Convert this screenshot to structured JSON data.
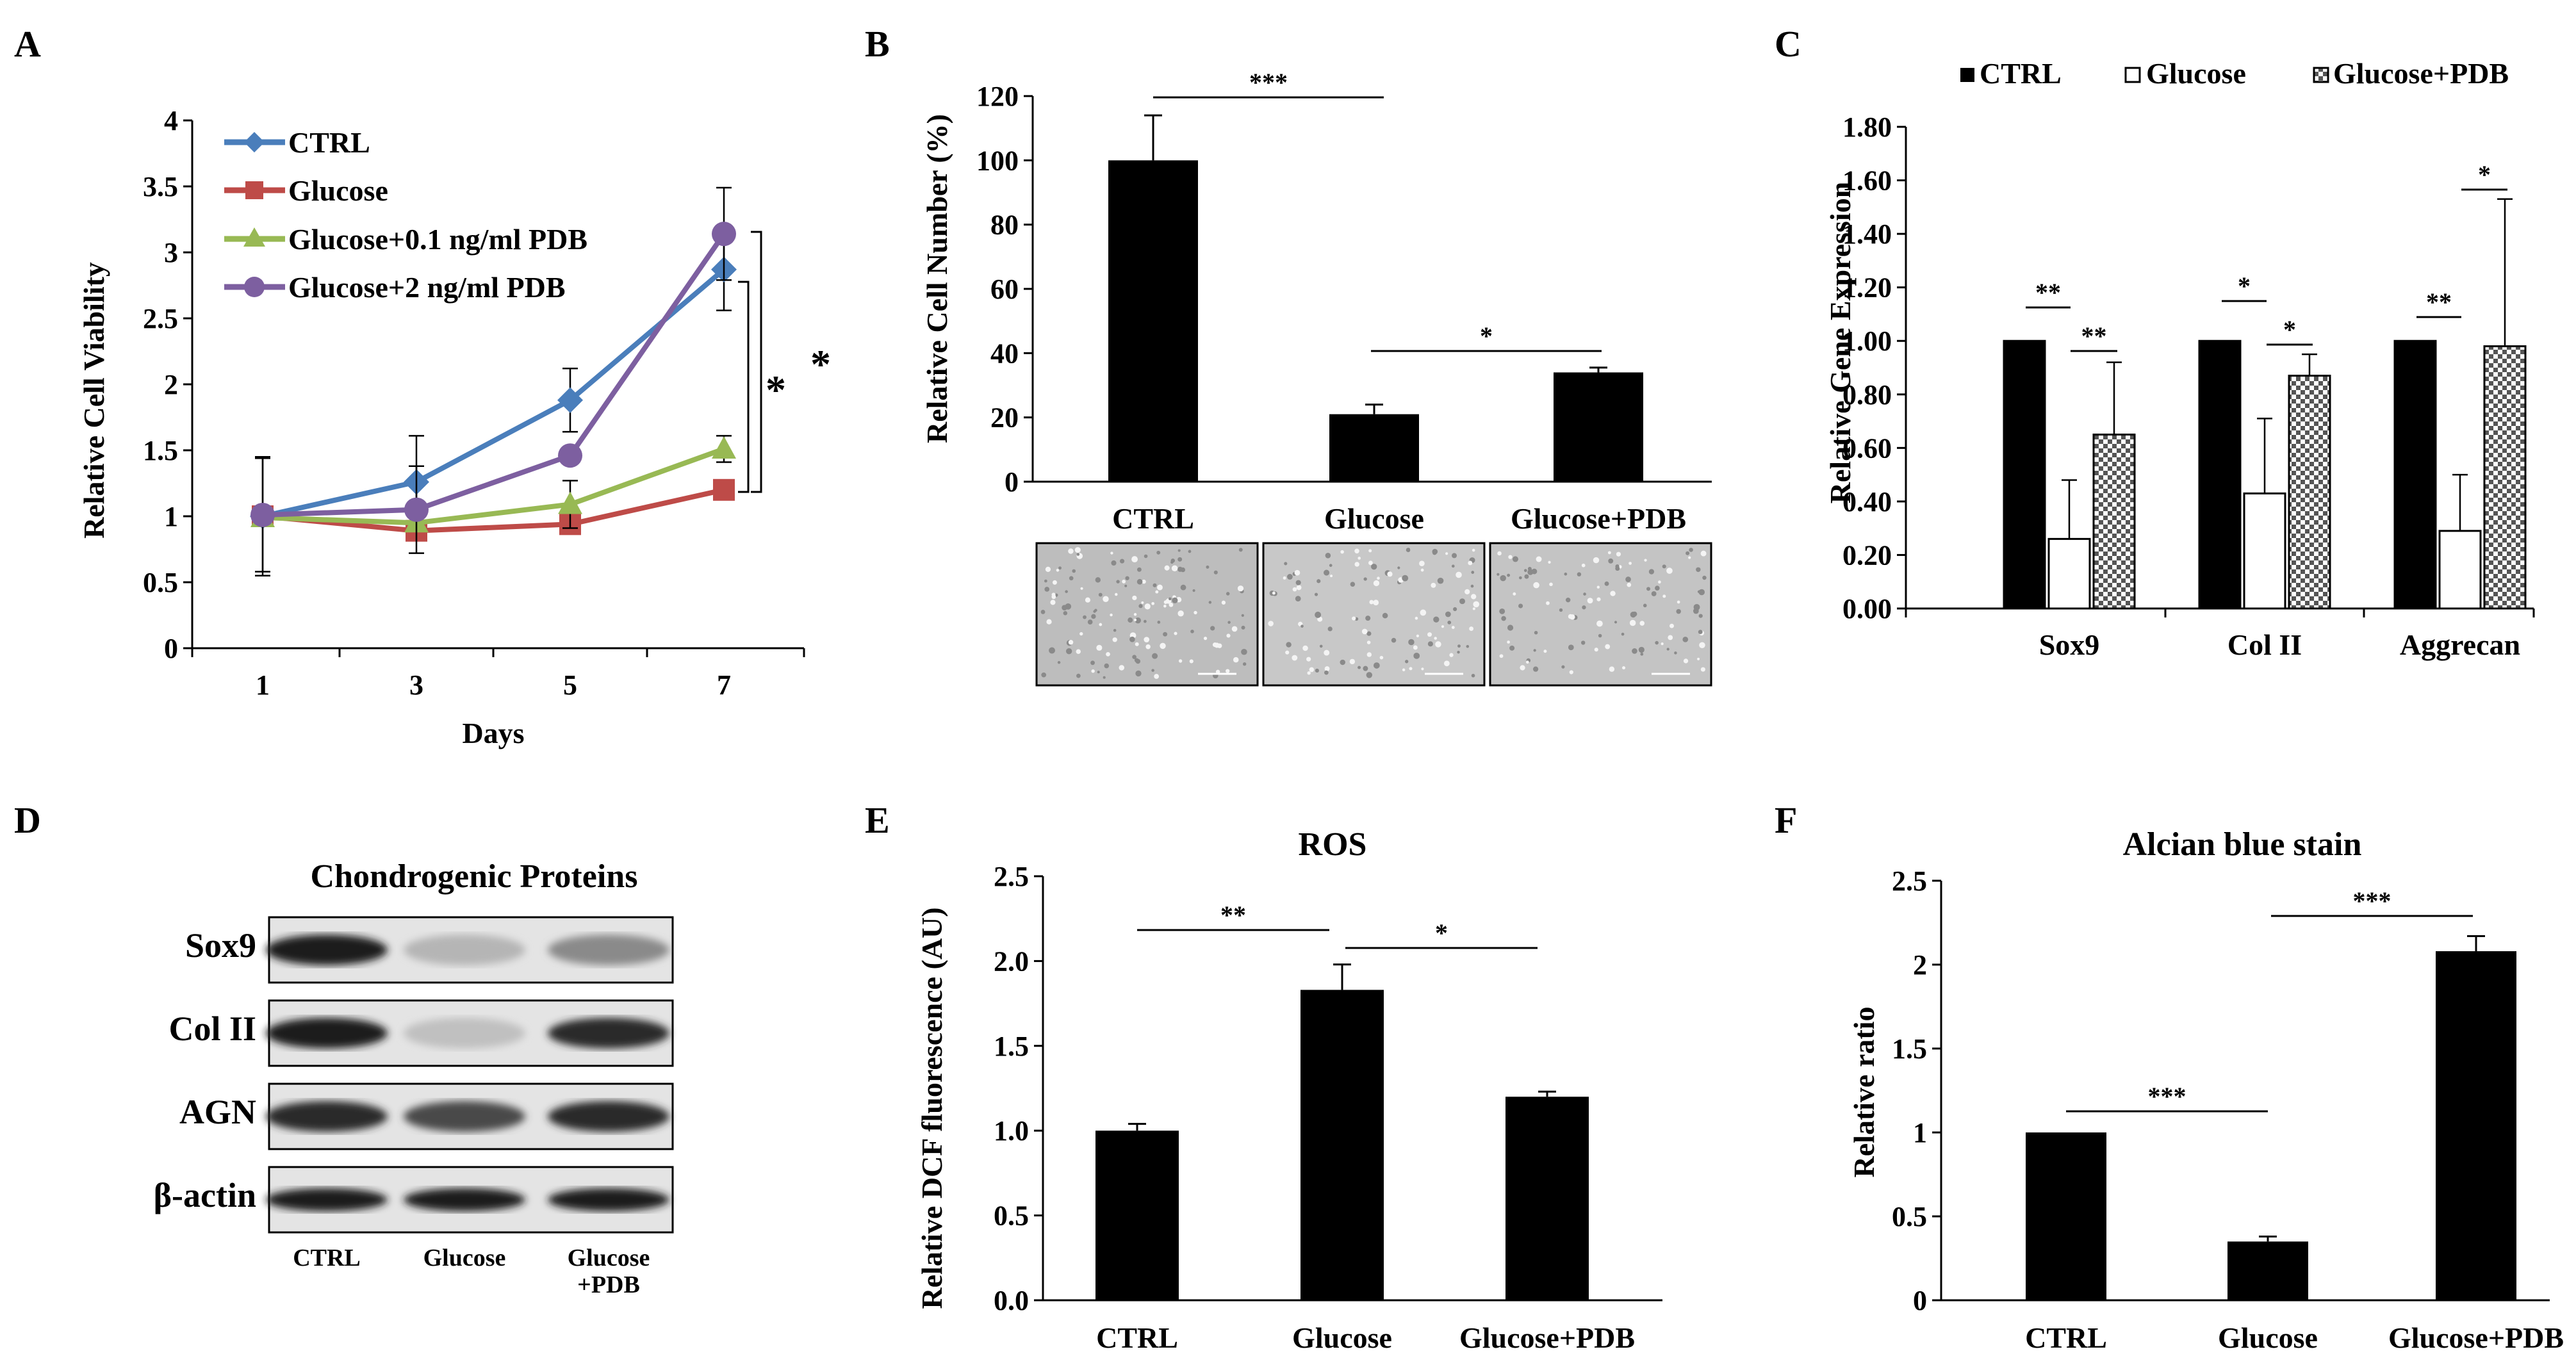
{
  "panel_letters": [
    "A",
    "B",
    "C",
    "D",
    "E",
    "F"
  ],
  "colors": {
    "ctrl": "#4a7ebb",
    "glucose": "#be4b48",
    "pdb01": "#98b954",
    "pdb2": "#7d5fa0",
    "bar": "#000000"
  },
  "chart_data": [
    {
      "panel": "A",
      "type": "line",
      "x": [
        1,
        3,
        5,
        7
      ],
      "xticks": [
        "1",
        "3",
        "5",
        "7"
      ],
      "xlabel": "Days",
      "ylabel": "Relative Cell Viability",
      "ylim": [
        0,
        4
      ],
      "yticks": [
        "0",
        "0.5",
        "1",
        "1.5",
        "2",
        "2.5",
        "3",
        "3.5",
        "4"
      ],
      "series": [
        {
          "name": "CTRL",
          "marker": "diamond",
          "values": [
            1.0,
            1.26,
            1.88,
            2.87
          ],
          "errors": [
            0.45,
            0.35,
            0.24,
            0.31
          ]
        },
        {
          "name": "Glucose",
          "marker": "square",
          "values": [
            1.0,
            0.89,
            0.94,
            1.2
          ],
          "errors": [
            0.0,
            0.0,
            0.0,
            0.0
          ]
        },
        {
          "name": "Glucose+0.1 ng/ml PDB",
          "marker": "triangle",
          "values": [
            0.99,
            0.95,
            1.09,
            1.51
          ],
          "errors": [
            0.0,
            0.0,
            0.18,
            0.1
          ]
        },
        {
          "name": "Glucose+2 ng/ml PDB",
          "marker": "circle",
          "values": [
            1.01,
            1.05,
            1.46,
            3.14
          ],
          "errors": [
            0.43,
            0.33,
            0.0,
            0.35
          ]
        }
      ],
      "annotations": [
        "*",
        "*"
      ]
    },
    {
      "panel": "B",
      "type": "bar",
      "categories": [
        "CTRL",
        "Glucose",
        "Glucose+PDB"
      ],
      "values": [
        100,
        21,
        34
      ],
      "errors": [
        14,
        3,
        1.5
      ],
      "ylabel": "Relative Cell Number (%)",
      "ylim": [
        0,
        120
      ],
      "yticks": [
        "0",
        "20",
        "40",
        "60",
        "80",
        "100",
        "120"
      ],
      "significance": [
        {
          "label": "***",
          "from": "CTRL",
          "to": "Glucose"
        },
        {
          "label": "*",
          "from": "Glucose",
          "to": "Glucose+PDB"
        }
      ]
    },
    {
      "panel": "C",
      "type": "bar",
      "categories": [
        "Sox9",
        "Col II",
        "Aggrecan"
      ],
      "legend_position": "top",
      "series": [
        {
          "name": "CTRL",
          "pattern": "solid",
          "values": [
            1.0,
            1.0,
            1.0
          ],
          "errors": [
            0.0,
            0.0,
            0.0
          ]
        },
        {
          "name": "Glucose",
          "pattern": "open",
          "values": [
            0.26,
            0.43,
            0.29
          ],
          "errors": [
            0.22,
            0.28,
            0.21
          ]
        },
        {
          "name": "Glucose+PDB",
          "pattern": "checkered",
          "values": [
            0.65,
            0.87,
            0.98
          ],
          "errors": [
            0.27,
            0.08,
            0.55
          ]
        }
      ],
      "ylabel": "Relative Gene Expression",
      "ylim": [
        0,
        1.8
      ],
      "yticks": [
        "0.00",
        "0.20",
        "0.40",
        "0.60",
        "0.80",
        "1.00",
        "1.20",
        "1.40",
        "1.60",
        "1.80"
      ],
      "significance": [
        {
          "label": "**",
          "group": "Sox9",
          "pair": "CTRL-Glucose"
        },
        {
          "label": "**",
          "group": "Sox9",
          "pair": "Glucose-Glucose+PDB"
        },
        {
          "label": "*",
          "group": "Col II",
          "pair": "CTRL-Glucose"
        },
        {
          "label": "*",
          "group": "Col II",
          "pair": "Glucose-Glucose+PDB"
        },
        {
          "label": "**",
          "group": "Aggrecan",
          "pair": "CTRL-Glucose"
        },
        {
          "label": "*",
          "group": "Aggrecan",
          "pair": "Glucose-Glucose+PDB"
        }
      ]
    },
    {
      "panel": "E",
      "type": "bar",
      "title": "ROS",
      "categories": [
        "CTRL",
        "Glucose",
        "Glucose+PDB"
      ],
      "values": [
        1.0,
        1.83,
        1.2
      ],
      "errors": [
        0.04,
        0.15,
        0.03
      ],
      "ylabel": "Relative DCF fluorescence (AU)",
      "ylim": [
        0,
        2.5
      ],
      "yticks": [
        "0.0",
        "0.5",
        "1.0",
        "1.5",
        "2.0",
        "2.5"
      ],
      "significance": [
        {
          "label": "**",
          "from": "CTRL",
          "to": "Glucose"
        },
        {
          "label": "*",
          "from": "Glucose",
          "to": "Glucose+PDB"
        }
      ]
    },
    {
      "panel": "F",
      "type": "bar",
      "title": "Alcian blue stain",
      "categories": [
        "CTRL",
        "Glucose",
        "Glucose+PDB"
      ],
      "values": [
        1.0,
        0.35,
        2.08
      ],
      "errors": [
        0.0,
        0.03,
        0.09
      ],
      "ylabel": "Relative ratio",
      "ylim": [
        0,
        2.5
      ],
      "yticks": [
        "0",
        "0.5",
        "1",
        "1.5",
        "2",
        "2.5"
      ],
      "significance": [
        {
          "label": "***",
          "from": "CTRL",
          "to": "Glucose"
        },
        {
          "label": "***",
          "from": "Glucose",
          "to": "Glucose+PDB"
        }
      ]
    }
  ],
  "blot": {
    "title": "Chondrogenic Proteins",
    "rows": [
      {
        "label": "Sox9",
        "intensities": [
          0.95,
          0.25,
          0.45
        ]
      },
      {
        "label": "Col II",
        "intensities": [
          0.95,
          0.2,
          0.9
        ]
      },
      {
        "label": "AGN",
        "intensities": [
          0.9,
          0.75,
          0.9
        ]
      },
      {
        "label": "β-actin",
        "intensities": [
          0.95,
          0.95,
          0.95
        ]
      }
    ],
    "categories": [
      "CTRL",
      "Glucose",
      "Glucose\n+PDB"
    ],
    "categories_lines": [
      [
        "CTRL"
      ],
      [
        "Glucose"
      ],
      [
        "Glucose",
        "+PDB"
      ]
    ]
  },
  "micrograph": {
    "labels": [
      "CTRL",
      "Glucose",
      "Glucose+PDB"
    ]
  }
}
